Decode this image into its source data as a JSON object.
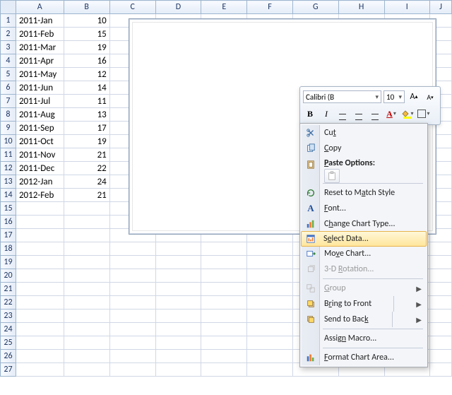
{
  "columns": [
    "A",
    "B",
    "C",
    "D",
    "E",
    "F",
    "G",
    "H",
    "I",
    "J"
  ],
  "row_count": 27,
  "column_widths": {
    "A": 68,
    "B": 68,
    "C": 68,
    "D": 68,
    "E": 68,
    "F": 68,
    "G": 68,
    "H": 68,
    "I": 68,
    "J": 32
  },
  "data_rows": [
    {
      "a": "2011-Jan",
      "b": "10"
    },
    {
      "a": "2011-Feb",
      "b": "15"
    },
    {
      "a": "2011-Mar",
      "b": "19"
    },
    {
      "a": "2011-Apr",
      "b": "16"
    },
    {
      "a": "2011-May",
      "b": "12"
    },
    {
      "a": "2011-Jun",
      "b": "14"
    },
    {
      "a": "2011-Jul",
      "b": "11"
    },
    {
      "a": "2011-Aug",
      "b": "13"
    },
    {
      "a": "2011-Sep",
      "b": "17"
    },
    {
      "a": "2011-Oct",
      "b": "19"
    },
    {
      "a": "2011-Nov",
      "b": "21"
    },
    {
      "a": "2011-Dec",
      "b": "22"
    },
    {
      "a": "2012-Jan",
      "b": "24"
    },
    {
      "a": "2012-Feb",
      "b": "21"
    }
  ],
  "mini_toolbar": {
    "font_name": "Calibri (B",
    "font_size": "10"
  },
  "context_menu": {
    "cut": "Cut",
    "copy": "Copy",
    "paste_options": "Paste Options:",
    "reset": "Reset to Match Style",
    "font": "Font...",
    "change_chart_type": "Change Chart Type...",
    "select_data": "Select Data...",
    "move_chart": "Move Chart...",
    "rotation": "3-D Rotation...",
    "group": "Group",
    "bring_front": "Bring to Front",
    "send_back": "Send to Back",
    "assign_macro": "Assign Macro...",
    "format_chart_area": "Format Chart Area..."
  },
  "colors": {
    "grid_border": "#d0d7e5",
    "header_bg_from": "#f8faff",
    "header_bg_to": "#e4ecf7",
    "header_border": "#9eb6ce",
    "menu_highlight_from": "#fff7d8",
    "menu_highlight_to": "#ffe69b",
    "menu_highlight_border": "#e8b44d"
  }
}
